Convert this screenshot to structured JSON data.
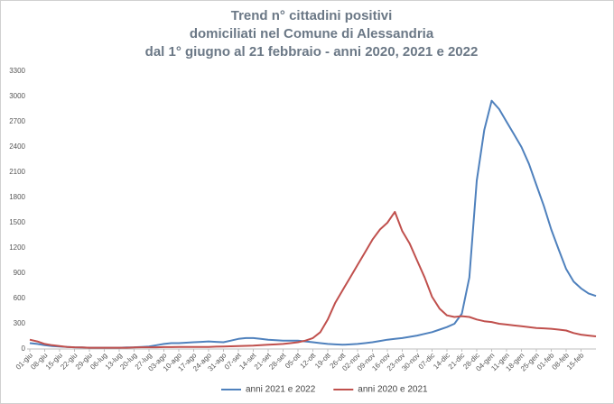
{
  "chart_data": {
    "type": "line",
    "title": [
      "Trend n° cittadini positivi",
      "domiciliati nel Comune di Alessandria",
      "dal 1° giugno al 21 febbraio - anni 2020, 2021 e 2022"
    ],
    "categories": [
      "01-giu",
      null,
      "08-giu",
      null,
      "15-giu",
      null,
      "22-giu",
      null,
      "29-giu",
      null,
      "06-lug",
      null,
      "13-lug",
      null,
      "20-lug",
      null,
      "27-lug",
      null,
      "03-ago",
      null,
      "10-ago",
      null,
      "17-ago",
      null,
      "24-ago",
      null,
      "31-ago",
      null,
      "07-set",
      null,
      "14-set",
      null,
      "21-set",
      null,
      "28-set",
      null,
      "05-ott",
      null,
      "12-ott",
      null,
      "19-ott",
      null,
      "26-ott",
      null,
      "02-nov",
      null,
      "09-nov",
      null,
      "16-nov",
      null,
      "23-nov",
      null,
      "30-nov",
      null,
      "07-dic",
      null,
      "14-dic",
      null,
      "21-dic",
      null,
      "28-dic",
      null,
      "04-gen",
      null,
      "11-gen",
      null,
      "18-gen",
      null,
      "25-gen",
      null,
      "01-feb",
      null,
      "08-feb",
      null,
      "15-feb",
      null,
      null
    ],
    "series": [
      {
        "name": "anni 2021 e 2022",
        "color": "#4f81bd",
        "values": [
          70,
          60,
          45,
          35,
          30,
          25,
          20,
          18,
          15,
          15,
          15,
          15,
          15,
          18,
          20,
          25,
          30,
          45,
          60,
          70,
          70,
          75,
          80,
          85,
          90,
          85,
          80,
          100,
          120,
          130,
          130,
          120,
          110,
          105,
          100,
          100,
          100,
          90,
          80,
          70,
          60,
          55,
          50,
          55,
          60,
          70,
          80,
          95,
          110,
          120,
          130,
          145,
          160,
          180,
          200,
          230,
          260,
          300,
          420,
          850,
          2000,
          2600,
          2950,
          2850,
          2700,
          2550,
          2400,
          2200,
          1950,
          1700,
          1420,
          1180,
          950,
          800,
          720,
          660,
          630
        ]
      },
      {
        "name": "anni 2020 e 2021",
        "color": "#c0504d",
        "values": [
          110,
          90,
          60,
          45,
          35,
          25,
          20,
          18,
          15,
          15,
          15,
          15,
          15,
          15,
          18,
          20,
          20,
          20,
          22,
          22,
          25,
          25,
          25,
          25,
          25,
          28,
          30,
          32,
          35,
          38,
          40,
          45,
          50,
          55,
          60,
          70,
          80,
          100,
          130,
          200,
          350,
          550,
          700,
          850,
          1000,
          1150,
          1300,
          1420,
          1500,
          1630,
          1400,
          1250,
          1050,
          850,
          620,
          480,
          400,
          380,
          390,
          380,
          350,
          330,
          320,
          300,
          290,
          280,
          270,
          260,
          250,
          245,
          240,
          230,
          220,
          190,
          170,
          160,
          150
        ]
      }
    ],
    "ylim": [
      0,
      3300
    ],
    "yticks": [
      0,
      300,
      600,
      900,
      1200,
      1500,
      1800,
      2100,
      2400,
      2700,
      3000,
      3300
    ],
    "legend": "bottom"
  }
}
